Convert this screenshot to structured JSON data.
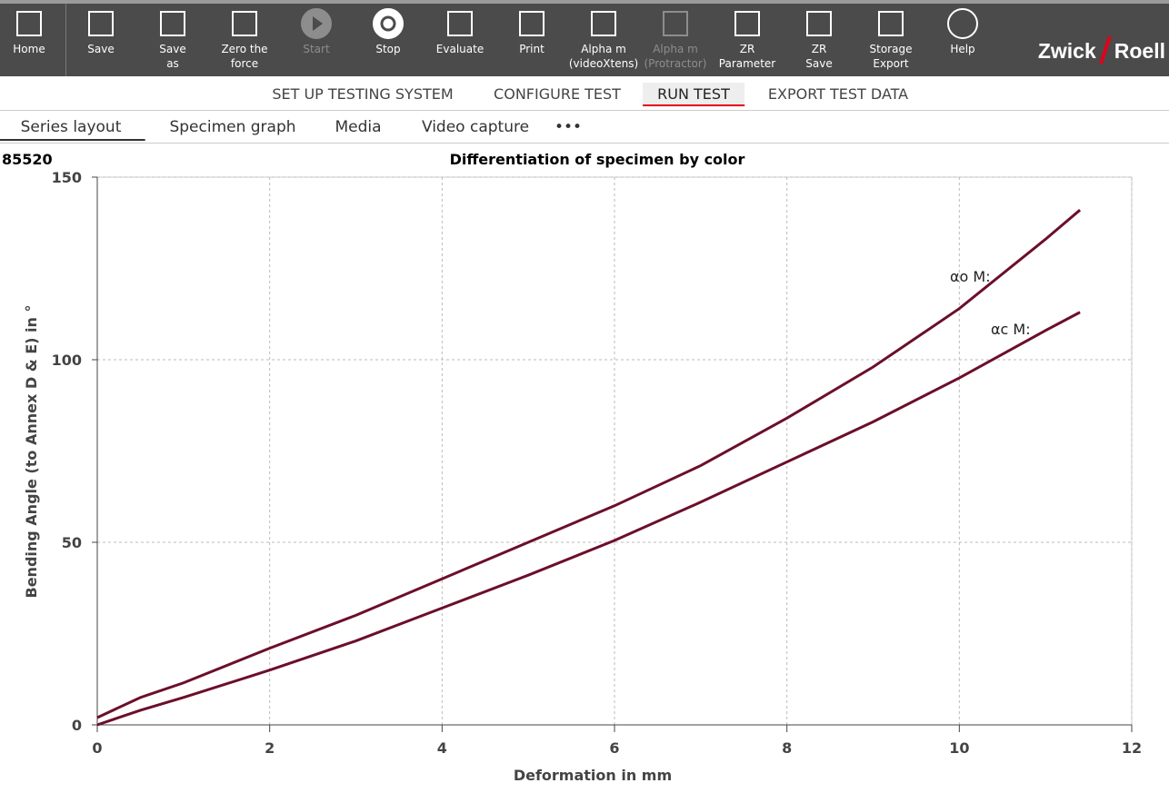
{
  "toolbar": {
    "buttons": [
      {
        "lines": [
          "Home"
        ],
        "disabled": false
      },
      {
        "lines": [
          "Save"
        ],
        "disabled": false
      },
      {
        "lines": [
          "Save",
          "as"
        ],
        "disabled": false
      },
      {
        "lines": [
          "Zero the",
          "force"
        ],
        "disabled": false
      },
      {
        "lines": [
          "Start"
        ],
        "disabled": true
      },
      {
        "lines": [
          "Stop"
        ],
        "disabled": false
      },
      {
        "lines": [
          "Evaluate"
        ],
        "disabled": false
      },
      {
        "lines": [
          "Print"
        ],
        "disabled": false
      },
      {
        "lines": [
          "Alpha m",
          "(videoXtens)"
        ],
        "disabled": false
      },
      {
        "lines": [
          "Alpha m",
          "(Protractor)"
        ],
        "disabled": true
      },
      {
        "lines": [
          "ZR",
          "Parameter"
        ],
        "disabled": false
      },
      {
        "lines": [
          "ZR",
          "Save"
        ],
        "disabled": false
      },
      {
        "lines": [
          "Storage",
          "Export"
        ],
        "disabled": false
      },
      {
        "lines": [
          "Help"
        ],
        "disabled": false
      }
    ],
    "logo_left": "Zwick",
    "logo_right": "Roell"
  },
  "nav_tabs": {
    "items": [
      "SET UP TESTING SYSTEM",
      "CONFIGURE TEST",
      "RUN TEST",
      "EXPORT TEST DATA"
    ],
    "active": 2
  },
  "sub_tabs": {
    "items": [
      "Series layout",
      "Specimen graph",
      "Media",
      "Video capture",
      "•••"
    ],
    "active": 0
  },
  "chart_data": {
    "type": "line",
    "specimen": "85520",
    "title": "Differentiation of specimen by color",
    "x_label": "Deformation in mm",
    "y_label": "Bending Angle (to Annex D & E) in °",
    "x": [
      0,
      0.5,
      1,
      2,
      3,
      4,
      5,
      6,
      7,
      8,
      9,
      10,
      11,
      11.4
    ],
    "series": [
      {
        "color": "#6b0f2a",
        "values": [
          2,
          7.5,
          11.5,
          21,
          30,
          40,
          50,
          60,
          71,
          84,
          98,
          114,
          133,
          141
        ]
      },
      {
        "color": "#6b0f2a",
        "values": [
          0,
          4,
          7.5,
          15,
          23,
          32,
          41,
          50.5,
          61,
          72,
          83,
          95,
          108,
          113
        ]
      }
    ],
    "annotations": [
      "αo M:",
      "αc M:"
    ],
    "xlim": [
      0,
      12
    ],
    "xticks": [
      0,
      2,
      4,
      6,
      8,
      10,
      12
    ],
    "ylim": [
      0,
      150
    ],
    "yticks": [
      0,
      50,
      100,
      150
    ],
    "grid": true
  }
}
